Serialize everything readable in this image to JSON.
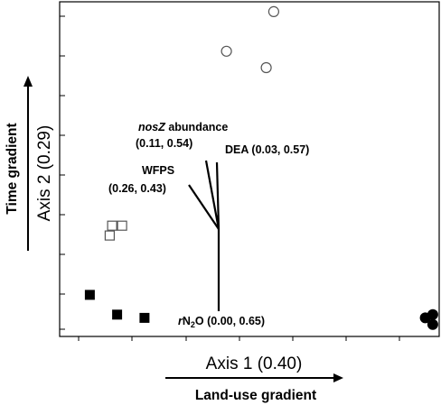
{
  "chart_data": {
    "type": "scatter",
    "title": "",
    "xlabel": "Axis 1 (0.40)",
    "ylabel": "Axis 2 (0.29)",
    "x_gradient_label": "Land-use gradient",
    "y_gradient_label": "Time gradient",
    "grid": false,
    "series": [
      {
        "marker": "open-circle",
        "points": [
          [
            0.73,
            0.97
          ],
          [
            0.54,
            0.85
          ],
          [
            0.7,
            0.8
          ]
        ]
      },
      {
        "marker": "open-square",
        "points": [
          [
            0.08,
            0.32
          ],
          [
            0.12,
            0.32
          ],
          [
            0.07,
            0.29
          ]
        ]
      },
      {
        "marker": "filled-square",
        "points": [
          [
            -0.01,
            0.11
          ],
          [
            0.1,
            0.05
          ],
          [
            0.21,
            0.04
          ]
        ]
      },
      {
        "marker": "filled-circle",
        "points": [
          [
            1.34,
            0.04
          ],
          [
            1.37,
            0.05
          ],
          [
            1.37,
            0.02
          ]
        ]
      }
    ],
    "vectors": [
      {
        "name": "nosZ abundance",
        "values": "(0.11, 0.54)",
        "label_lines": [
          "nosZ abundance",
          "(0.11, 0.54)"
        ]
      },
      {
        "name": "DEA",
        "values": "(0.03, 0.57)",
        "label_lines": [
          "DEA (0.03, 0.57)"
        ]
      },
      {
        "name": "WFPS",
        "values": "(0.26, 0.43)",
        "label_lines": [
          "WFPS",
          "(0.26, 0.43)"
        ]
      },
      {
        "name": "rN2O",
        "values": "(0.00, 0.65)",
        "label_lines": [
          "rN2O (0.00, 0.65)"
        ]
      }
    ]
  },
  "labels": {
    "nosz_name": "nosZ",
    "nosz_rest": " abundance",
    "nosz_values": "(0.11, 0.54)",
    "dea": "DEA (0.03, 0.57)",
    "wfps_name": "WFPS",
    "wfps_values": "(0.26, 0.43)",
    "rn2o_r": "r",
    "rn2o_n": "N",
    "rn2o_sub": "2",
    "rn2o_rest": "O (0.00, 0.65)"
  }
}
